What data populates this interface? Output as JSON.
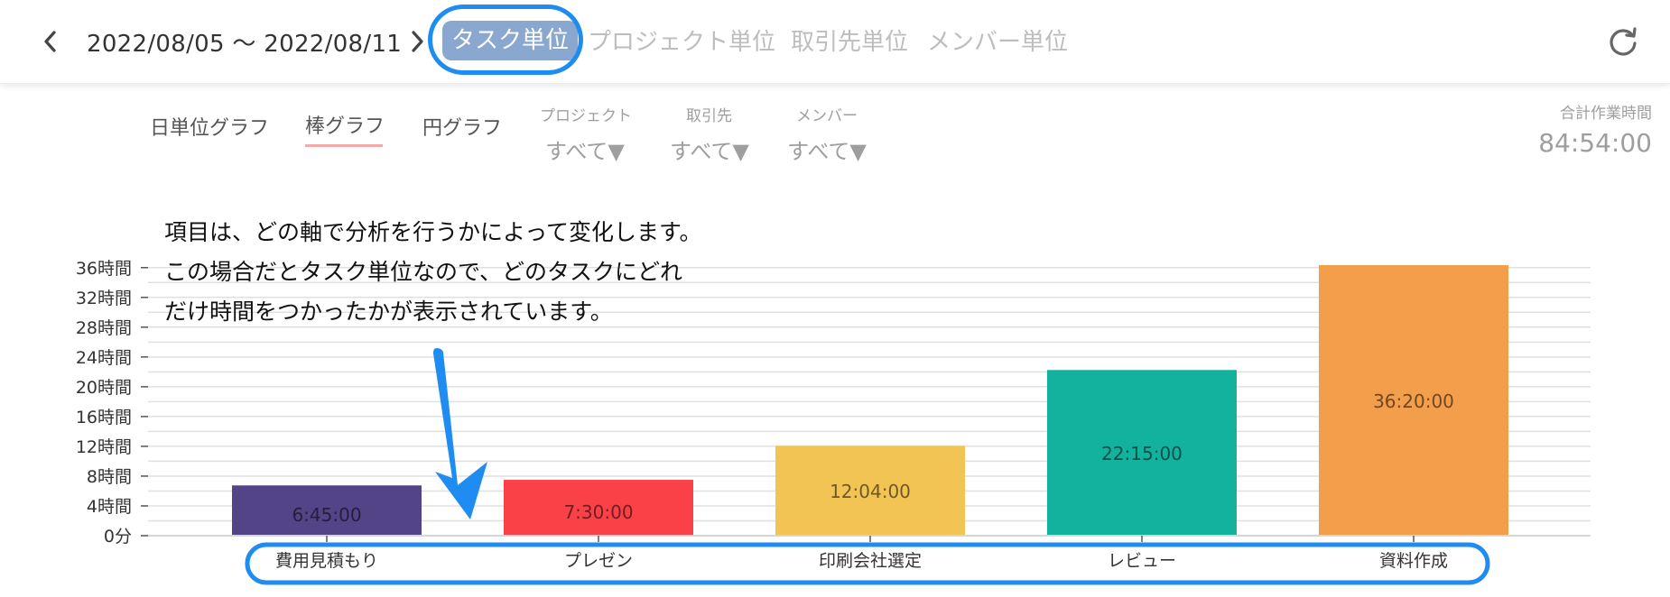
{
  "header": {
    "date_range": "2022/08/05 〜 2022/08/11",
    "tabs": [
      {
        "label": "タスク単位",
        "active": true
      },
      {
        "label": "プロジェクト単位",
        "active": false
      },
      {
        "label": "取引先単位",
        "active": false
      },
      {
        "label": "メンバー単位",
        "active": false
      }
    ],
    "icons": {
      "prev": "chevron-left-icon",
      "next": "chevron-right-icon",
      "refresh": "refresh-icon"
    }
  },
  "toolbar": {
    "view_tabs": [
      {
        "label": "日単位グラフ",
        "active": false
      },
      {
        "label": "棒グラフ",
        "active": true
      },
      {
        "label": "円グラフ",
        "active": false
      }
    ],
    "filters": [
      {
        "label": "プロジェクト",
        "value": "すべて▼"
      },
      {
        "label": "取引先",
        "value": "すべて▼"
      },
      {
        "label": "メンバー",
        "value": "すべて▼"
      }
    ],
    "total_label": "合計作業時間",
    "total_value": "84:54:00"
  },
  "annotation": {
    "lines": [
      "項目は、どの軸で分析を行うかによって変化します。",
      "この場合だとタスク単位なので、どのタスクにどれ",
      "だけ時間をつかったかが表示されています。"
    ],
    "color": "#1e8cf0"
  },
  "chart_data": {
    "type": "bar",
    "categories": [
      "費用見積もり",
      "プレゼン",
      "印刷会社選定",
      "レビュー",
      "資料作成"
    ],
    "values": [
      6.75,
      7.5,
      12.0667,
      22.25,
      36.3333
    ],
    "value_labels": [
      "6:45:00",
      "7:30:00",
      "12:04:00",
      "22:15:00",
      "36:20:00"
    ],
    "colors": [
      "#524486",
      "#fa4147",
      "#f1c453",
      "#12b29e",
      "#f39e4b"
    ],
    "yticks": [
      0,
      4,
      8,
      12,
      16,
      20,
      24,
      28,
      32,
      36
    ],
    "ytick_labels": [
      "0分",
      "4時間",
      "8時間",
      "12時間",
      "16時間",
      "20時間",
      "24時間",
      "28時間",
      "32時間",
      "36時間"
    ],
    "ylim": [
      0,
      36.3333
    ],
    "grid": true,
    "legend": "none"
  }
}
